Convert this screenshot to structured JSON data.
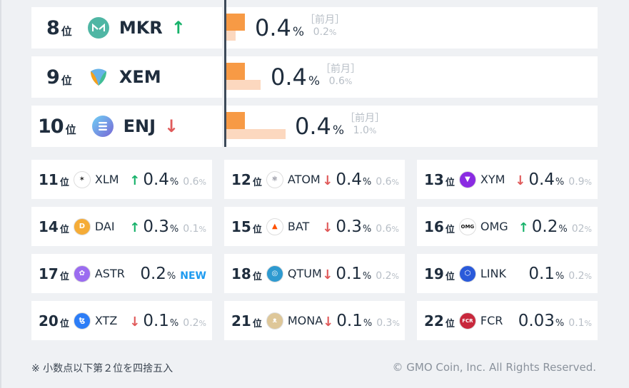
{
  "top_ranks": [
    {
      "rank": "8",
      "suffix": "位",
      "coin": "MKR",
      "logo_color": "#4fb6a4",
      "logo_icon": "maker-icon",
      "trend": "up",
      "arrow": "↑",
      "value": "0.4",
      "pct": "%",
      "prev_label": "［前月］",
      "prev_value": "0.2",
      "prev_pct": "%",
      "bar_now": 0.4,
      "bar_prev": 0.2
    },
    {
      "rank": "9",
      "suffix": "位",
      "coin": "XEM",
      "logo_color": "#67b2e8",
      "logo_icon": "nem-icon",
      "trend": "none",
      "arrow": "",
      "value": "0.4",
      "pct": "%",
      "prev_label": "［前月］",
      "prev_value": "0.6",
      "prev_pct": "%",
      "bar_now": 0.4,
      "bar_prev": 0.6
    },
    {
      "rank": "10",
      "suffix": "位",
      "coin": "ENJ",
      "logo_color": "#7866d5",
      "logo_icon": "enjin-icon",
      "trend": "down",
      "arrow": "↓",
      "value": "0.4",
      "pct": "%",
      "prev_label": "［前月］",
      "prev_value": "1.0",
      "prev_pct": "%",
      "bar_now": 0.4,
      "bar_prev": 1.0
    }
  ],
  "grid": [
    {
      "rank": "11",
      "suffix": "位",
      "coin": "XLM",
      "logo_color": "#ffffff",
      "logo_glyph": "✶",
      "logo_fg": "#222222",
      "trend": "up",
      "arrow": "↑",
      "value": "0.4",
      "pct": "%",
      "prev": "0.6",
      "prev_pct": "%",
      "new": ""
    },
    {
      "rank": "12",
      "suffix": "位",
      "coin": "ATOM",
      "logo_color": "#ffffff",
      "logo_glyph": "⚛",
      "logo_fg": "#2e3148",
      "trend": "down",
      "arrow": "↓",
      "value": "0.4",
      "pct": "%",
      "prev": "0.6",
      "prev_pct": "%",
      "new": ""
    },
    {
      "rank": "13",
      "suffix": "位",
      "coin": "XYM",
      "logo_color": "#8a2be2",
      "logo_glyph": "▼",
      "logo_fg": "#ffffff",
      "trend": "down",
      "arrow": "↓",
      "value": "0.4",
      "pct": "%",
      "prev": "0.9",
      "prev_pct": "%",
      "new": ""
    },
    {
      "rank": "14",
      "suffix": "位",
      "coin": "DAI",
      "logo_color": "#f5ac37",
      "logo_glyph": "D",
      "logo_fg": "#ffffff",
      "trend": "up",
      "arrow": "↑",
      "value": "0.3",
      "pct": "%",
      "prev": "0.1",
      "prev_pct": "%",
      "new": ""
    },
    {
      "rank": "15",
      "suffix": "位",
      "coin": "BAT",
      "logo_color": "#ffffff",
      "logo_glyph": "▲",
      "logo_fg": "#ff5000",
      "trend": "down",
      "arrow": "↓",
      "value": "0.3",
      "pct": "%",
      "prev": "0.6",
      "prev_pct": "%",
      "new": ""
    },
    {
      "rank": "16",
      "suffix": "位",
      "coin": "OMG",
      "logo_color": "#ffffff",
      "logo_glyph": "OMG",
      "logo_fg": "#101010",
      "trend": "up",
      "arrow": "↑",
      "value": "0.2",
      "pct": "%",
      "prev": "02",
      "prev_pct": "%",
      "new": ""
    },
    {
      "rank": "17",
      "suffix": "位",
      "coin": "ASTR",
      "logo_color": "#9b6cf0",
      "logo_glyph": "✿",
      "logo_fg": "#ffffff",
      "trend": "none",
      "arrow": "",
      "value": "0.2",
      "pct": "%",
      "prev": "",
      "prev_pct": "",
      "new": "NEW"
    },
    {
      "rank": "18",
      "suffix": "位",
      "coin": "QTUM",
      "logo_color": "#2e9ad0",
      "logo_glyph": "◎",
      "logo_fg": "#ffffff",
      "trend": "down",
      "arrow": "↓",
      "value": "0.1",
      "pct": "%",
      "prev": "0.2",
      "prev_pct": "%",
      "new": ""
    },
    {
      "rank": "19",
      "suffix": "位",
      "coin": "LINK",
      "logo_color": "#2a5ada",
      "logo_glyph": "⬡",
      "logo_fg": "#ffffff",
      "trend": "none",
      "arrow": "",
      "value": "0.1",
      "pct": "%",
      "prev": "0.2",
      "prev_pct": "%",
      "new": ""
    },
    {
      "rank": "20",
      "suffix": "位",
      "coin": "XTZ",
      "logo_color": "#2c7df7",
      "logo_glyph": "ꜩ",
      "logo_fg": "#ffffff",
      "trend": "down",
      "arrow": "↓",
      "value": "0.1",
      "pct": "%",
      "prev": "0.2",
      "prev_pct": "%",
      "new": ""
    },
    {
      "rank": "21",
      "suffix": "位",
      "coin": "MONA",
      "logo_color": "#dec799",
      "logo_glyph": "ᴥ",
      "logo_fg": "#ffffff",
      "trend": "down",
      "arrow": "↓",
      "value": "0.1",
      "pct": "%",
      "prev": "0.3",
      "prev_pct": "%",
      "new": ""
    },
    {
      "rank": "22",
      "suffix": "位",
      "coin": "FCR",
      "logo_color": "#c8283c",
      "logo_glyph": "FCR",
      "logo_fg": "#ffffff",
      "trend": "none",
      "arrow": "",
      "value": "0.03",
      "pct": "%",
      "prev": "0.1",
      "prev_pct": "%",
      "new": ""
    }
  ],
  "footer": {
    "note": "※ 小数点以下第２位を四捨五入",
    "copyright": "© GMO Coin, Inc. All Rights Reserved."
  }
}
